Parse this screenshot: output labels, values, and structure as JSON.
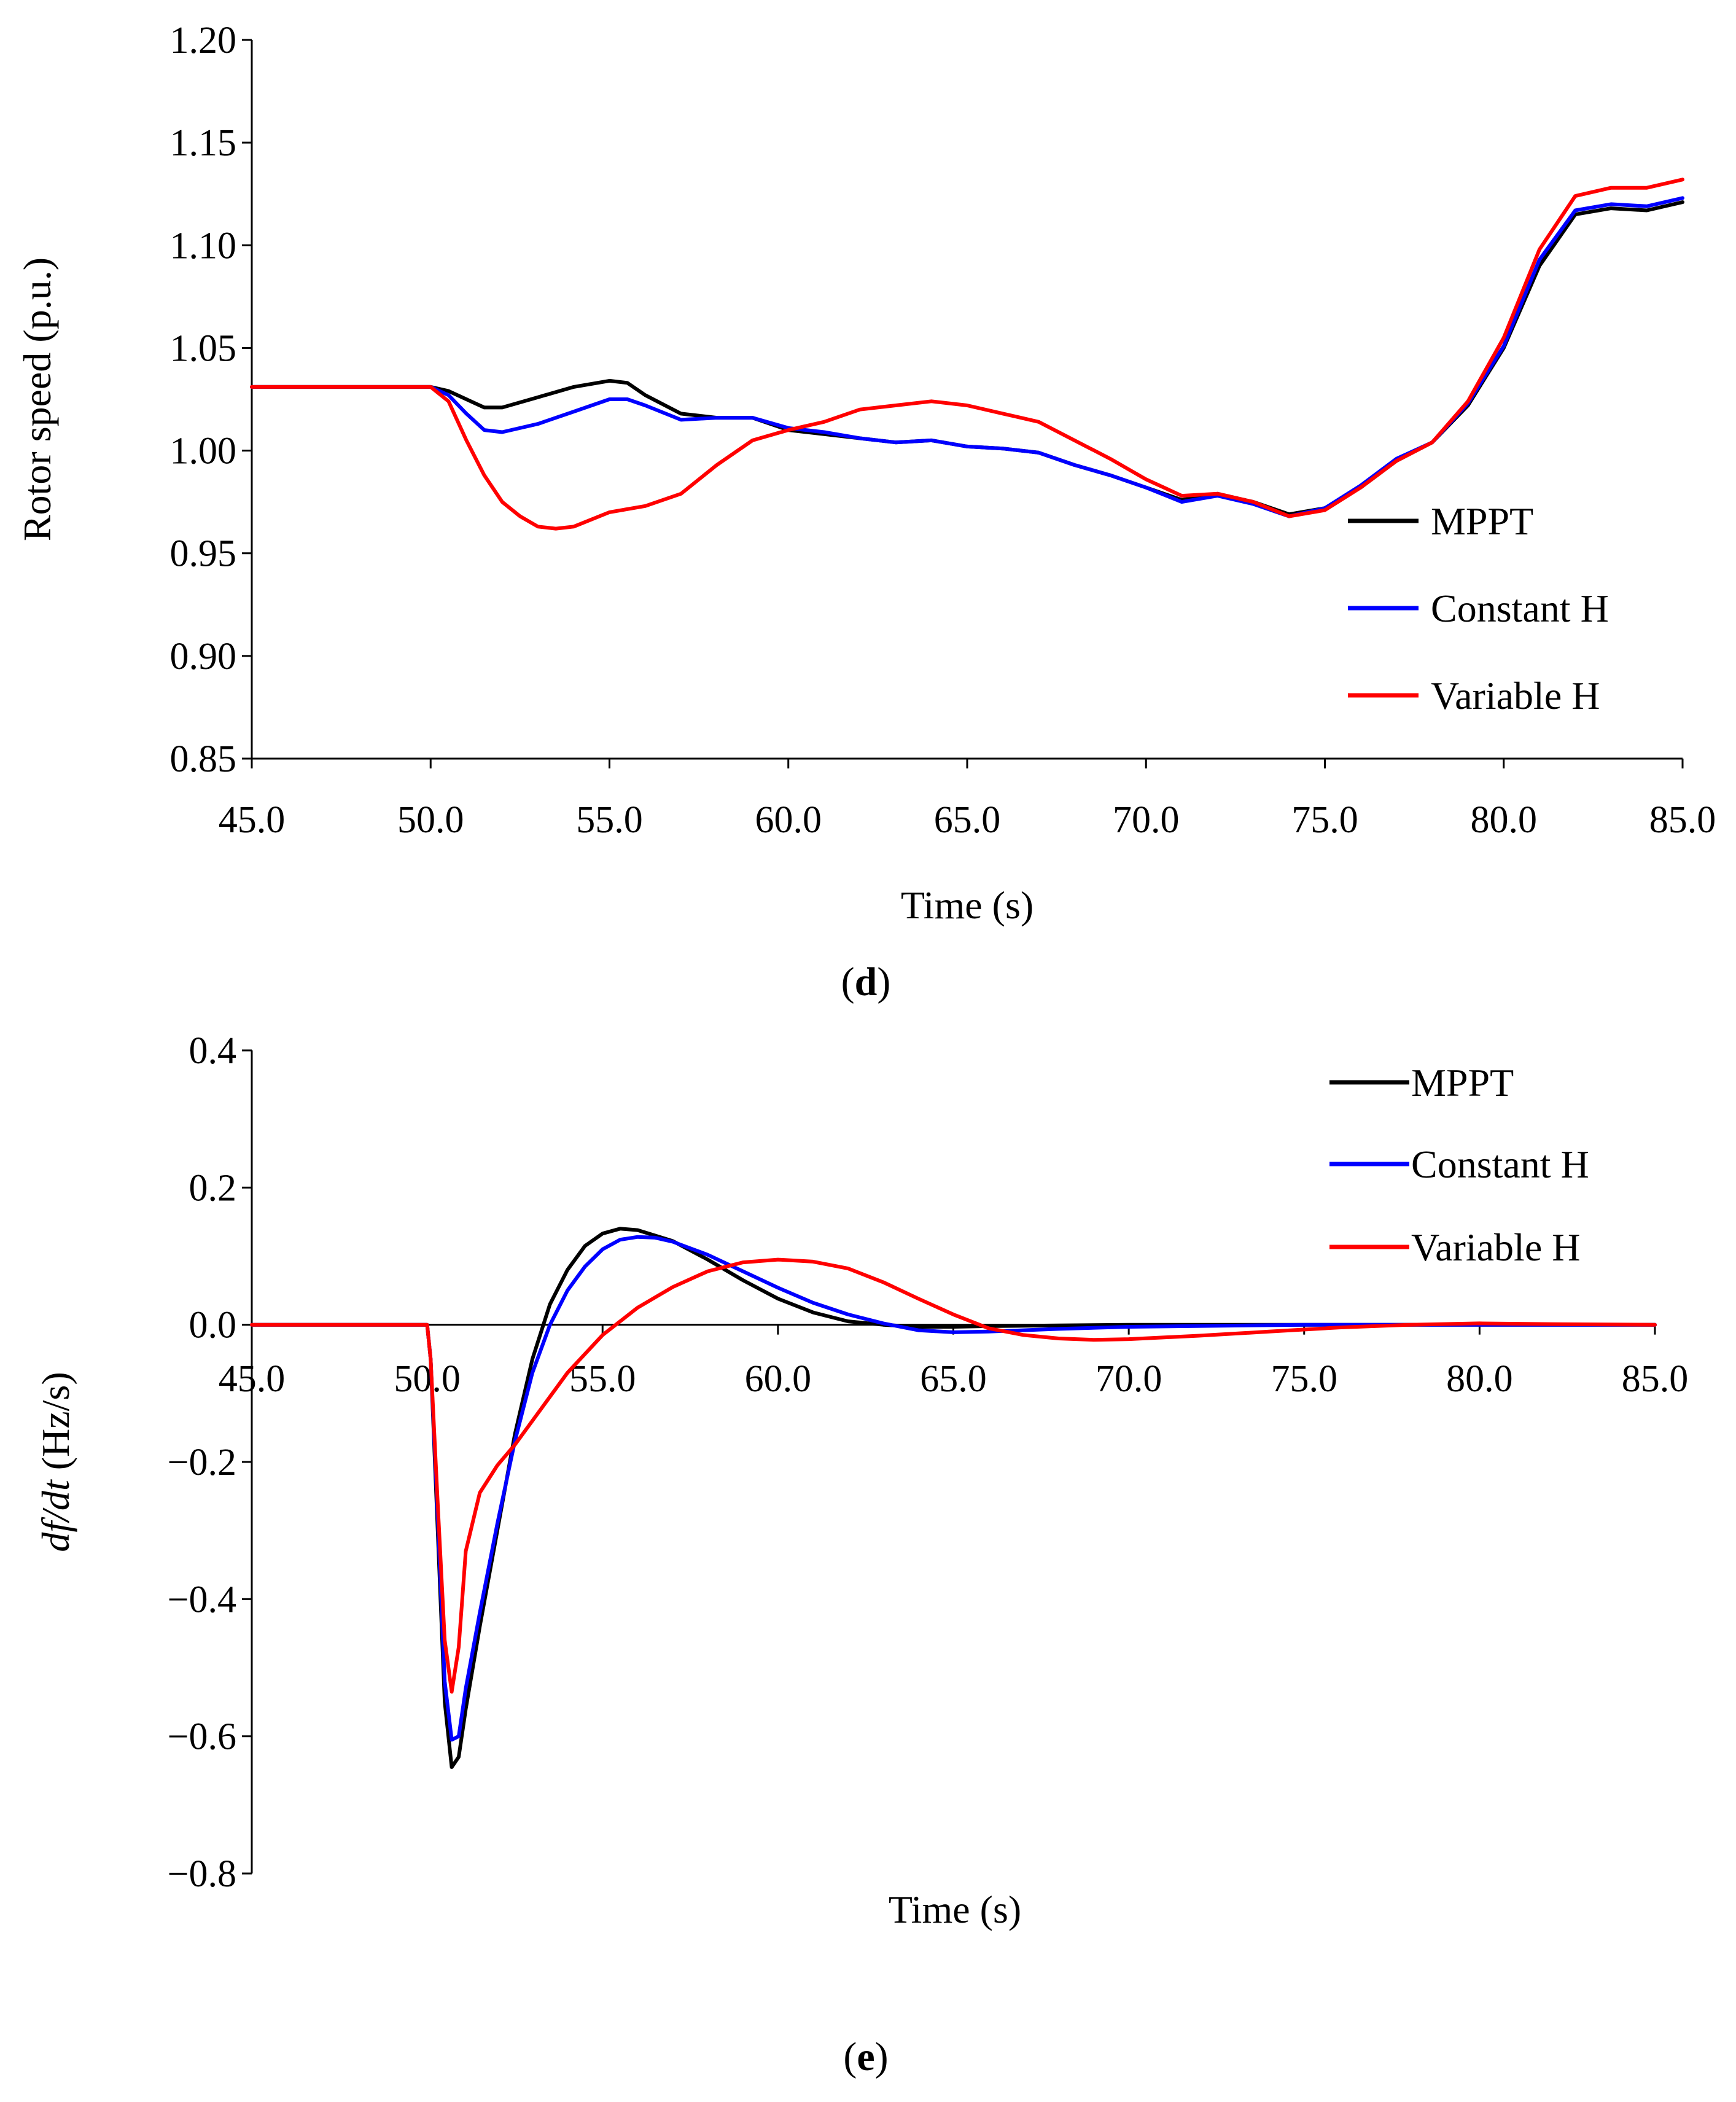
{
  "chart_data": [
    {
      "type": "line",
      "panel": "d",
      "panel_label": "d",
      "xlabel": "Time (s)",
      "ylabel": "Rotor speed (p.u.)",
      "xlim": [
        45,
        85
      ],
      "ylim": [
        0.85,
        1.2
      ],
      "xticks": [
        45,
        50,
        55,
        60,
        65,
        70,
        75,
        80,
        85
      ],
      "xtick_labels": [
        "45.0",
        "50.0",
        "55.0",
        "60.0",
        "65.0",
        "70.0",
        "75.0",
        "80.0",
        "85.0"
      ],
      "yticks": [
        0.85,
        0.9,
        0.95,
        1.0,
        1.05,
        1.1,
        1.15,
        1.2
      ],
      "ytick_labels": [
        "0.85",
        "0.90",
        "0.95",
        "1.00",
        "1.05",
        "1.10",
        "1.15",
        "1.20"
      ],
      "legend_position": "bottom-right",
      "series": [
        {
          "name": "MPPT",
          "color": "#000000",
          "x": [
            45,
            50,
            50.5,
            51,
            51.5,
            52,
            53,
            54,
            55,
            55.5,
            56,
            57,
            58,
            59,
            60,
            61,
            62,
            63,
            64,
            65,
            66,
            67,
            68,
            69,
            70,
            71,
            72,
            73,
            74,
            75,
            76,
            77,
            78,
            79,
            80,
            81,
            82,
            83,
            84,
            85
          ],
          "y": [
            1.031,
            1.031,
            1.029,
            1.025,
            1.021,
            1.021,
            1.026,
            1.031,
            1.034,
            1.033,
            1.027,
            1.018,
            1.016,
            1.016,
            1.01,
            1.008,
            1.006,
            1.004,
            1.005,
            1.002,
            1.001,
            0.999,
            0.993,
            0.988,
            0.982,
            0.976,
            0.979,
            0.975,
            0.969,
            0.972,
            0.982,
            0.995,
            1.004,
            1.022,
            1.05,
            1.09,
            1.115,
            1.118,
            1.117,
            1.121
          ]
        },
        {
          "name": "Constant H",
          "color": "#0000ff",
          "x": [
            45,
            50,
            50.5,
            51,
            51.5,
            52,
            53,
            54,
            55,
            55.5,
            56,
            57,
            58,
            59,
            60,
            61,
            62,
            63,
            64,
            65,
            66,
            67,
            68,
            69,
            70,
            71,
            72,
            73,
            74,
            75,
            76,
            77,
            78,
            79,
            80,
            81,
            82,
            83,
            84,
            85
          ],
          "y": [
            1.031,
            1.031,
            1.027,
            1.018,
            1.01,
            1.009,
            1.013,
            1.019,
            1.025,
            1.025,
            1.022,
            1.015,
            1.016,
            1.016,
            1.011,
            1.009,
            1.006,
            1.004,
            1.005,
            1.002,
            1.001,
            0.999,
            0.993,
            0.988,
            0.982,
            0.975,
            0.978,
            0.974,
            0.968,
            0.972,
            0.983,
            0.996,
            1.004,
            1.023,
            1.051,
            1.093,
            1.117,
            1.12,
            1.119,
            1.123
          ]
        },
        {
          "name": "Variable H",
          "color": "#ff0000",
          "x": [
            45,
            50,
            50.5,
            51,
            51.5,
            52,
            52.5,
            53,
            53.5,
            54,
            55,
            56,
            57,
            58,
            59,
            60,
            61,
            62,
            63,
            64,
            65,
            66,
            67,
            68,
            69,
            70,
            71,
            72,
            73,
            74,
            75,
            76,
            77,
            78,
            79,
            80,
            81,
            82,
            83,
            84,
            85
          ],
          "y": [
            1.031,
            1.031,
            1.024,
            1.005,
            0.988,
            0.975,
            0.968,
            0.963,
            0.962,
            0.963,
            0.97,
            0.973,
            0.979,
            0.993,
            1.005,
            1.01,
            1.014,
            1.02,
            1.022,
            1.024,
            1.022,
            1.018,
            1.014,
            1.005,
            0.996,
            0.986,
            0.978,
            0.979,
            0.975,
            0.968,
            0.971,
            0.982,
            0.995,
            1.004,
            1.024,
            1.055,
            1.098,
            1.124,
            1.128,
            1.128,
            1.132
          ]
        }
      ]
    },
    {
      "type": "line",
      "panel": "e",
      "panel_label": "e",
      "xlabel": "Time (s)",
      "ylabel_italic": "df/dt",
      "ylabel_rest": " (Hz/s)",
      "xlim": [
        45,
        85
      ],
      "ylim": [
        -0.8,
        0.4
      ],
      "xticks": [
        45,
        50,
        55,
        60,
        65,
        70,
        75,
        80,
        85
      ],
      "xtick_labels": [
        "45.0",
        "50.0",
        "55.0",
        "60.0",
        "65.0",
        "70.0",
        "75.0",
        "80.0",
        "85.0"
      ],
      "yticks": [
        -0.8,
        -0.6,
        -0.4,
        -0.2,
        0.0,
        0.2,
        0.4
      ],
      "ytick_labels": [
        "−0.8",
        "−0.6",
        "−0.4",
        "−0.2",
        "0.0",
        "0.2",
        "0.4"
      ],
      "legend_position": "top-right",
      "series": [
        {
          "name": "MPPT",
          "color": "#000000",
          "x": [
            45,
            50,
            50.1,
            50.3,
            50.5,
            50.7,
            50.9,
            51.1,
            51.5,
            52,
            52.5,
            53,
            53.5,
            54,
            54.5,
            55,
            55.5,
            56,
            57,
            58,
            59,
            60,
            61,
            62,
            63,
            64,
            65,
            66,
            68,
            70,
            75,
            80,
            85
          ],
          "y": [
            0,
            0,
            -0.05,
            -0.3,
            -0.55,
            -0.645,
            -0.63,
            -0.56,
            -0.44,
            -0.3,
            -0.16,
            -0.05,
            0.03,
            0.08,
            0.115,
            0.133,
            0.14,
            0.138,
            0.122,
            0.095,
            0.065,
            0.038,
            0.018,
            0.005,
            0.0,
            -0.003,
            -0.003,
            -0.002,
            -0.001,
            0.0,
            0.0,
            0.0,
            0.0
          ]
        },
        {
          "name": "Constant H",
          "color": "#0000ff",
          "x": [
            45,
            50,
            50.1,
            50.3,
            50.5,
            50.7,
            50.9,
            51.1,
            51.5,
            52,
            52.5,
            53,
            53.5,
            54,
            54.5,
            55,
            55.5,
            56,
            56.5,
            57,
            58,
            59,
            60,
            61,
            62,
            63,
            64,
            65,
            66,
            68,
            70,
            75,
            80,
            85
          ],
          "y": [
            0,
            0,
            -0.05,
            -0.28,
            -0.52,
            -0.605,
            -0.6,
            -0.53,
            -0.42,
            -0.29,
            -0.17,
            -0.07,
            0.0,
            0.05,
            0.085,
            0.11,
            0.124,
            0.128,
            0.127,
            0.121,
            0.102,
            0.078,
            0.054,
            0.032,
            0.015,
            0.002,
            -0.008,
            -0.011,
            -0.01,
            -0.006,
            -0.003,
            0.0,
            0.0,
            0.0
          ]
        },
        {
          "name": "Variable H",
          "color": "#ff0000",
          "x": [
            45,
            50,
            50.1,
            50.3,
            50.5,
            50.7,
            50.9,
            51.1,
            51.5,
            52,
            52.5,
            53,
            54,
            55,
            56,
            57,
            58,
            59,
            60,
            61,
            62,
            63,
            64,
            65,
            66,
            67,
            68,
            69,
            70,
            72,
            74,
            76,
            78,
            80,
            82,
            85
          ],
          "y": [
            0,
            0,
            -0.05,
            -0.26,
            -0.46,
            -0.535,
            -0.47,
            -0.33,
            -0.245,
            -0.205,
            -0.175,
            -0.14,
            -0.07,
            -0.015,
            0.025,
            0.055,
            0.078,
            0.091,
            0.095,
            0.092,
            0.082,
            0.062,
            0.038,
            0.015,
            -0.005,
            -0.015,
            -0.02,
            -0.022,
            -0.021,
            -0.016,
            -0.01,
            -0.004,
            0.0,
            0.002,
            0.001,
            0.0
          ]
        }
      ]
    }
  ]
}
